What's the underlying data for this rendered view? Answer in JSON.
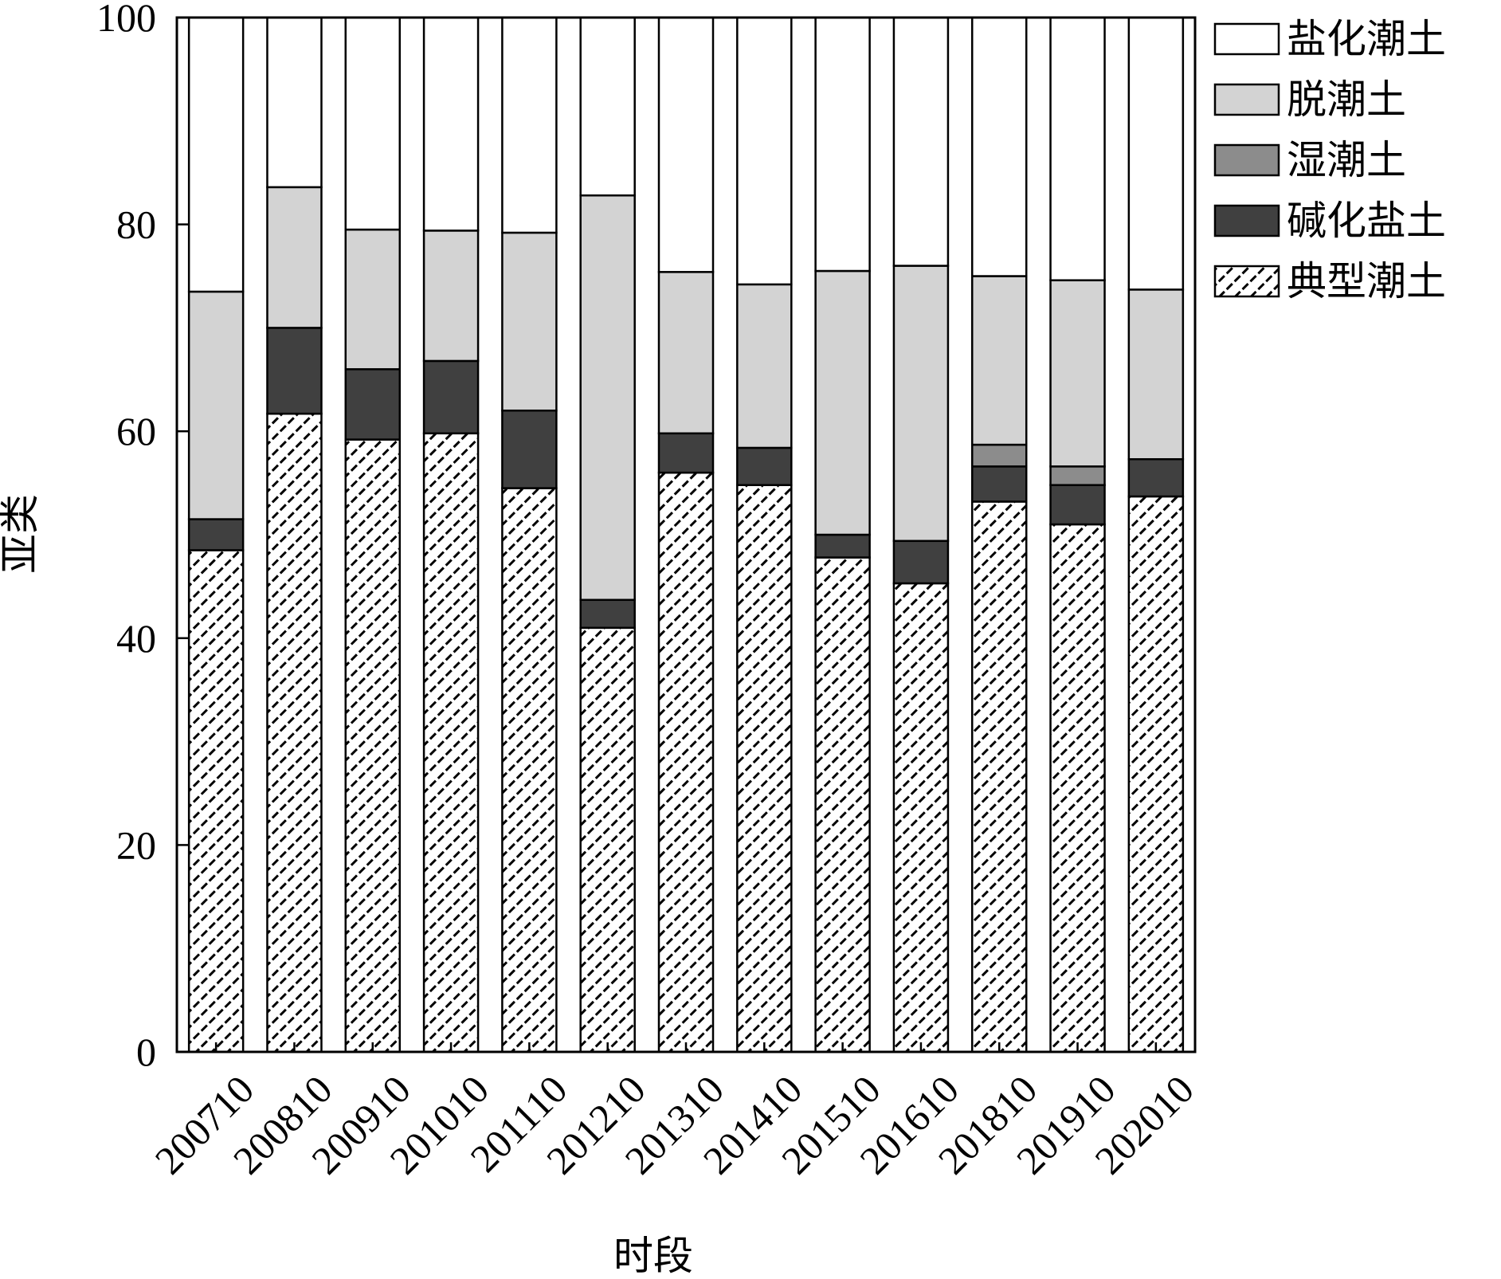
{
  "chart_data": {
    "type": "bar",
    "stacked": true,
    "title": "",
    "xlabel": "时段",
    "ylabel": "亚类",
    "ylim": [
      0,
      100
    ],
    "yticks": [
      0,
      20,
      40,
      60,
      80,
      100
    ],
    "grid": false,
    "legend_position": "top-right-outside",
    "categories": [
      "200710",
      "200810",
      "200910",
      "201010",
      "201110",
      "201210",
      "201310",
      "201410",
      "201510",
      "201610",
      "201810",
      "201910",
      "202010"
    ],
    "series": [
      {
        "name": "典型潮土",
        "fill": "hatch",
        "color": "#000000",
        "values": [
          48.5,
          61.7,
          59.2,
          59.8,
          54.5,
          41.0,
          56.0,
          54.8,
          47.8,
          45.3,
          53.2,
          51.0,
          53.7
        ]
      },
      {
        "name": "碱化盐土",
        "fill": "solid",
        "color": "#404040",
        "values": [
          3.0,
          8.3,
          6.8,
          7.0,
          7.5,
          2.7,
          3.8,
          3.6,
          2.2,
          4.1,
          3.4,
          3.8,
          3.6
        ]
      },
      {
        "name": "湿潮土",
        "fill": "solid",
        "color": "#8c8c8c",
        "values": [
          0,
          0,
          0,
          0,
          0,
          0,
          0,
          0,
          0,
          0,
          2.1,
          1.8,
          0
        ]
      },
      {
        "name": "脱潮土",
        "fill": "solid",
        "color": "#d3d3d3",
        "values": [
          22.0,
          13.6,
          13.5,
          12.6,
          17.2,
          39.1,
          15.6,
          15.8,
          25.5,
          26.6,
          16.3,
          18.0,
          16.4
        ]
      },
      {
        "name": "盐化潮土",
        "fill": "solid",
        "color": "#ffffff",
        "values": [
          26.5,
          16.4,
          20.5,
          20.6,
          20.8,
          17.2,
          24.6,
          25.8,
          24.5,
          24.0,
          25.0,
          25.4,
          26.3
        ]
      }
    ],
    "legend_order": [
      "盐化潮土",
      "脱潮土",
      "湿潮土",
      "碱化盐土",
      "典型潮土"
    ]
  }
}
